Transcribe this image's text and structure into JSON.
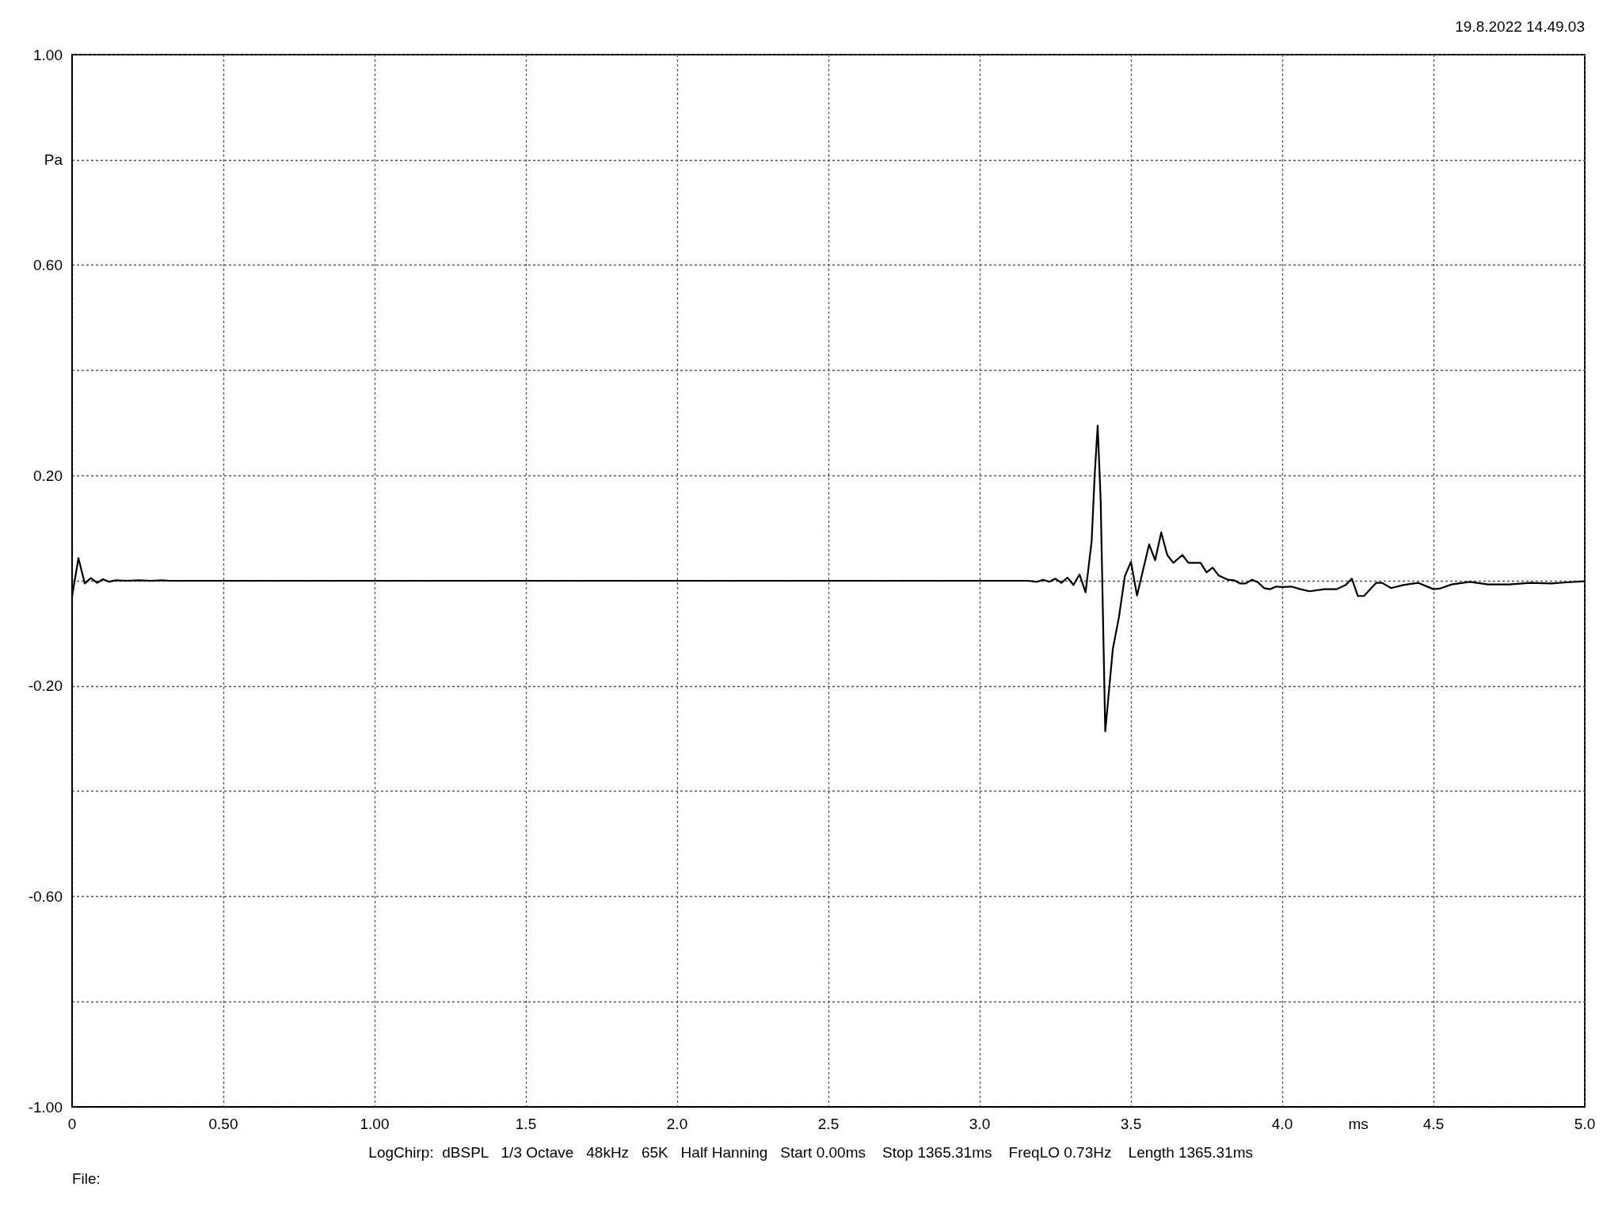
{
  "chart_data": {
    "type": "line",
    "annotations": [
      "19.8.2022 14.49.03",
      "LogChirp:  dBSPL   1/3 Octave   48kHz   65K   Half Hanning   Start 0.00ms    Stop 1365.31ms    FreqLO 0.73Hz    Length 1365.31ms",
      "File:"
    ],
    "xlabel": "ms",
    "x": [
      0,
      0.021,
      0.042,
      0.062,
      0.083,
      0.102,
      0.122,
      0.144,
      0.18,
      0.22,
      0.26,
      0.3,
      0.32,
      2.98,
      3.16,
      3.19,
      3.21,
      3.23,
      3.25,
      3.27,
      3.29,
      3.31,
      3.33,
      3.35,
      3.37,
      3.38,
      3.39,
      3.4,
      3.405,
      3.41,
      3.415,
      3.44,
      3.46,
      3.48,
      3.5,
      3.52,
      3.56,
      3.58,
      3.6,
      3.62,
      3.64,
      3.67,
      3.69,
      3.73,
      3.75,
      3.77,
      3.79,
      3.82,
      3.84,
      3.86,
      3.88,
      3.9,
      3.92,
      3.94,
      3.96,
      3.98,
      4.0,
      4.03,
      4.06,
      4.09,
      4.14,
      4.18,
      4.21,
      4.23,
      4.25,
      4.27,
      4.31,
      4.33,
      4.36,
      4.4,
      4.45,
      4.5,
      4.52,
      4.56,
      4.62,
      4.68,
      4.75,
      4.82,
      4.89,
      4.94,
      5.0
    ],
    "values": [
      -0.03,
      0.043,
      -0.005,
      0.005,
      -0.004,
      0.003,
      -0.002,
      0.001,
      0,
      0.001,
      0,
      0.001,
      0,
      0,
      0,
      -0.002,
      0.002,
      -0.002,
      0.004,
      -0.004,
      0.006,
      -0.008,
      0.012,
      -0.022,
      0.075,
      0.2,
      0.295,
      0.15,
      0.005,
      -0.14,
      -0.286,
      -0.13,
      -0.07,
      0.009,
      0.036,
      -0.028,
      0.069,
      0.039,
      0.092,
      0.049,
      0.034,
      0.049,
      0.034,
      0.034,
      0.016,
      0.025,
      0.01,
      0.002,
      0.001,
      -0.005,
      -0.005,
      0.002,
      -0.003,
      -0.014,
      -0.016,
      -0.011,
      -0.012,
      -0.011,
      -0.016,
      -0.02,
      -0.016,
      -0.016,
      -0.008,
      0.004,
      -0.029,
      -0.029,
      -0.004,
      -0.004,
      -0.014,
      -0.008,
      -0.004,
      -0.016,
      -0.015,
      -0.007,
      -0.002,
      -0.007,
      -0.007,
      -0.004,
      -0.005,
      -0.003,
      -0.001
    ],
    "color": "#000000",
    "marker": "none",
    "xlim": [
      0,
      5
    ],
    "xticks": [
      {
        "value": 0,
        "label": "0"
      },
      {
        "value": 0.5,
        "label": "0.50"
      },
      {
        "value": 1,
        "label": "1.00"
      },
      {
        "value": 1.5,
        "label": "1.5"
      },
      {
        "value": 2,
        "label": "2.0"
      },
      {
        "value": 2.5,
        "label": "2.5"
      },
      {
        "value": 3,
        "label": "3.0"
      },
      {
        "value": 3.5,
        "label": "3.5"
      },
      {
        "value": 4,
        "label": "4.0"
      },
      {
        "value": 4.5,
        "label": "4.5"
      },
      {
        "value": 5,
        "label": "5.0"
      }
    ],
    "ylim": [
      -1,
      1
    ],
    "yticks": [
      {
        "value": -1,
        "label": "-1.00"
      },
      {
        "value": -0.8,
        "label": null
      },
      {
        "value": -0.6,
        "label": "-0.60"
      },
      {
        "value": -0.4,
        "label": null
      },
      {
        "value": -0.2,
        "label": "-0.20"
      },
      {
        "value": 0,
        "label": null
      },
      {
        "value": 0.2,
        "label": "0.20"
      },
      {
        "value": 0.4,
        "label": null
      },
      {
        "value": 0.6,
        "label": "0.60"
      },
      {
        "value": 0.8,
        "label": "Pa"
      },
      {
        "value": 1,
        "label": "1.00"
      }
    ],
    "grid": true
  }
}
